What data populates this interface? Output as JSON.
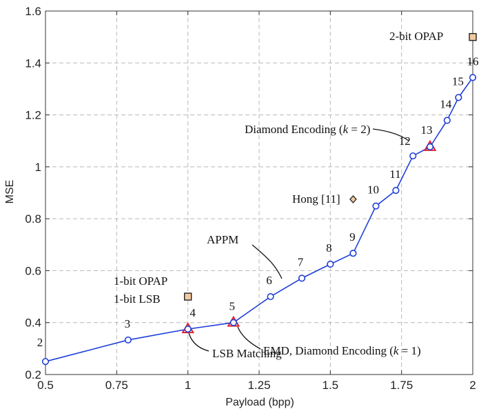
{
  "chart_data": {
    "type": "scatter",
    "xlabel": "Payload (bpp)",
    "ylabel": "MSE",
    "xlim": [
      0.5,
      2
    ],
    "ylim": [
      0.2,
      1.6
    ],
    "xticks": [
      0.5,
      0.75,
      1,
      1.25,
      1.5,
      1.75,
      2
    ],
    "xtick_labels": [
      "0.5",
      "0.75",
      "1",
      "1.25",
      "1.5",
      "1.75",
      "2"
    ],
    "yticks": [
      0.2,
      0.4,
      0.6,
      0.8,
      1,
      1.2,
      1.4,
      1.6
    ],
    "ytick_labels": [
      "0.2",
      "0.4",
      "0.6",
      "0.8",
      "1",
      "1.2",
      "1.4",
      "1.6"
    ],
    "grid": true,
    "series": [
      {
        "name": "APPM",
        "marker": "circle",
        "color": "#1f3fd8",
        "points": [
          {
            "x": 0.5,
            "y": 0.25,
            "label": "2"
          },
          {
            "x": 0.79,
            "y": 0.333,
            "label": "3"
          },
          {
            "x": 1.0,
            "y": 0.375,
            "label": "4"
          },
          {
            "x": 1.16,
            "y": 0.4,
            "label": "5"
          },
          {
            "x": 1.29,
            "y": 0.5,
            "label": "6"
          },
          {
            "x": 1.4,
            "y": 0.571,
            "label": "7"
          },
          {
            "x": 1.5,
            "y": 0.625,
            "label": "8"
          },
          {
            "x": 1.58,
            "y": 0.667,
            "label": "9"
          },
          {
            "x": 1.66,
            "y": 0.849,
            "label": "10"
          },
          {
            "x": 1.73,
            "y": 0.909,
            "label": "11"
          },
          {
            "x": 1.79,
            "y": 1.042,
            "label": "12"
          },
          {
            "x": 1.85,
            "y": 1.077,
            "label": "13"
          },
          {
            "x": 1.91,
            "y": 1.179,
            "label": "14"
          },
          {
            "x": 1.95,
            "y": 1.267,
            "label": "15"
          },
          {
            "x": 2.0,
            "y": 1.344,
            "label": "16"
          }
        ]
      },
      {
        "name": "EMD, Diamond Encoding (k = 1)",
        "marker": "triangle",
        "color": "#e0202c",
        "points": [
          {
            "x": 1.16,
            "y": 0.4
          }
        ]
      },
      {
        "name": "LSB Matching",
        "marker": "triangle",
        "color": "#e0202c",
        "points": [
          {
            "x": 1.0,
            "y": 0.375
          }
        ]
      },
      {
        "name": "Diamond Encoding (k = 2)",
        "marker": "triangle",
        "color": "#e0202c",
        "points": [
          {
            "x": 1.85,
            "y": 1.077
          }
        ]
      },
      {
        "name": "Hong [11]",
        "marker": "diamond",
        "color": "#f2c9a0",
        "points": [
          {
            "x": 1.58,
            "y": 0.875
          }
        ]
      },
      {
        "name": "1-bit OPAP / 1-bit LSB",
        "marker": "square",
        "color": "#f2c9a0",
        "points": [
          {
            "x": 1.0,
            "y": 0.5
          }
        ]
      },
      {
        "name": "2-bit OPAP",
        "marker": "square",
        "color": "#f2c9a0",
        "points": [
          {
            "x": 2.0,
            "y": 1.5
          }
        ]
      }
    ],
    "annotations": {
      "appm": "APPM",
      "diamond_k2_prefix": "Diamond Encoding  (",
      "diamond_k1_prefix": "EMD, Diamond Encoding (",
      "k_var": "k",
      "k2_suffix": " = 2)",
      "k1_suffix": " = 1)",
      "hong": "Hong [11]",
      "opap1": "1-bit OPAP",
      "lsb1": "1-bit LSB",
      "opap2": "2-bit OPAP",
      "lsb_matching": "LSB Matching"
    }
  }
}
